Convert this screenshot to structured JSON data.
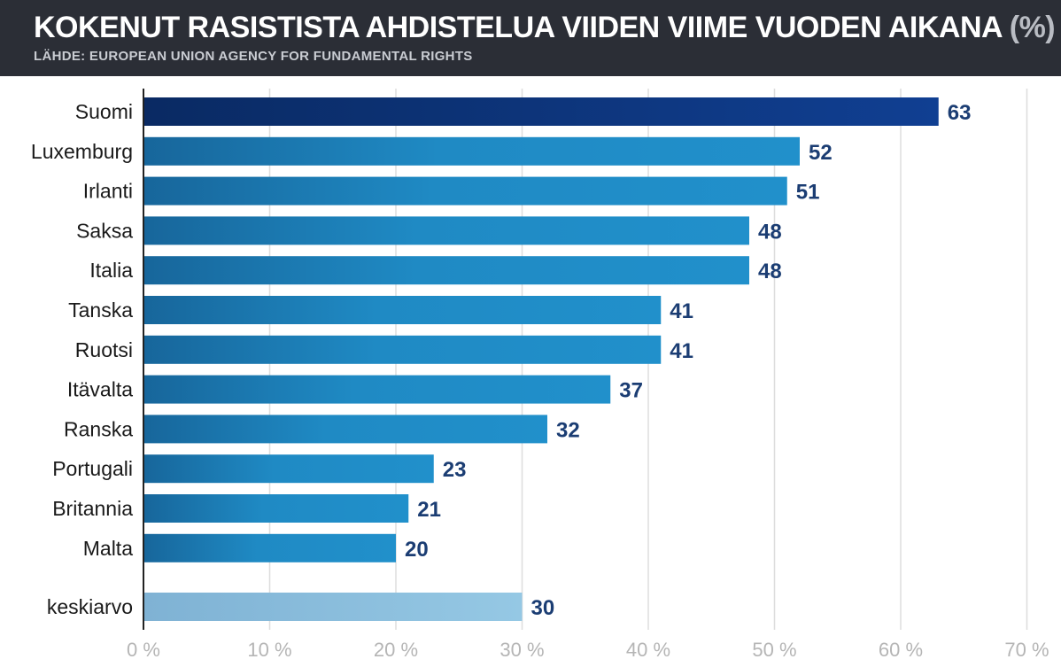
{
  "header": {
    "title": "KOKENUT RASISTISTA AHDISTELUA VIIDEN VIIME VUODEN AIKANA",
    "title_unit": "(%)",
    "source": "LÄHDE: EUROPEAN UNION AGENCY FOR FUNDAMENTAL RIGHTS"
  },
  "colors": {
    "header_bg": "#2b2e36",
    "highlight_bar": "#0e3a8a",
    "regular_bar": "#1f8ac4",
    "average_bar": "#8fc2de",
    "value_label": "#1b3d73",
    "grid": "#dddddd"
  },
  "chart_data": {
    "type": "bar",
    "orientation": "horizontal",
    "categories": [
      "Suomi",
      "Luxemburg",
      "Irlanti",
      "Saksa",
      "Italia",
      "Tanska",
      "Ruotsi",
      "Itävalta",
      "Ranska",
      "Portugali",
      "Britannia",
      "Malta",
      "keskiarvo"
    ],
    "values": [
      63,
      52,
      51,
      48,
      48,
      41,
      41,
      37,
      32,
      23,
      21,
      20,
      30
    ],
    "data_labels": [
      "63",
      "52",
      "51",
      "48",
      "48",
      "41",
      "41",
      "37",
      "32",
      "23",
      "21",
      "20",
      "30"
    ],
    "highlight": "Suomi",
    "average_category": "keskiarvo",
    "xlim": [
      0,
      70
    ],
    "xticks": [
      0,
      10,
      20,
      30,
      40,
      50,
      60,
      70
    ],
    "xtick_labels": [
      "0 %",
      "10 %",
      "20 %",
      "30 %",
      "40 %",
      "50 %",
      "60 %",
      "70 %"
    ],
    "grid": true,
    "xlabel": "",
    "ylabel": ""
  }
}
